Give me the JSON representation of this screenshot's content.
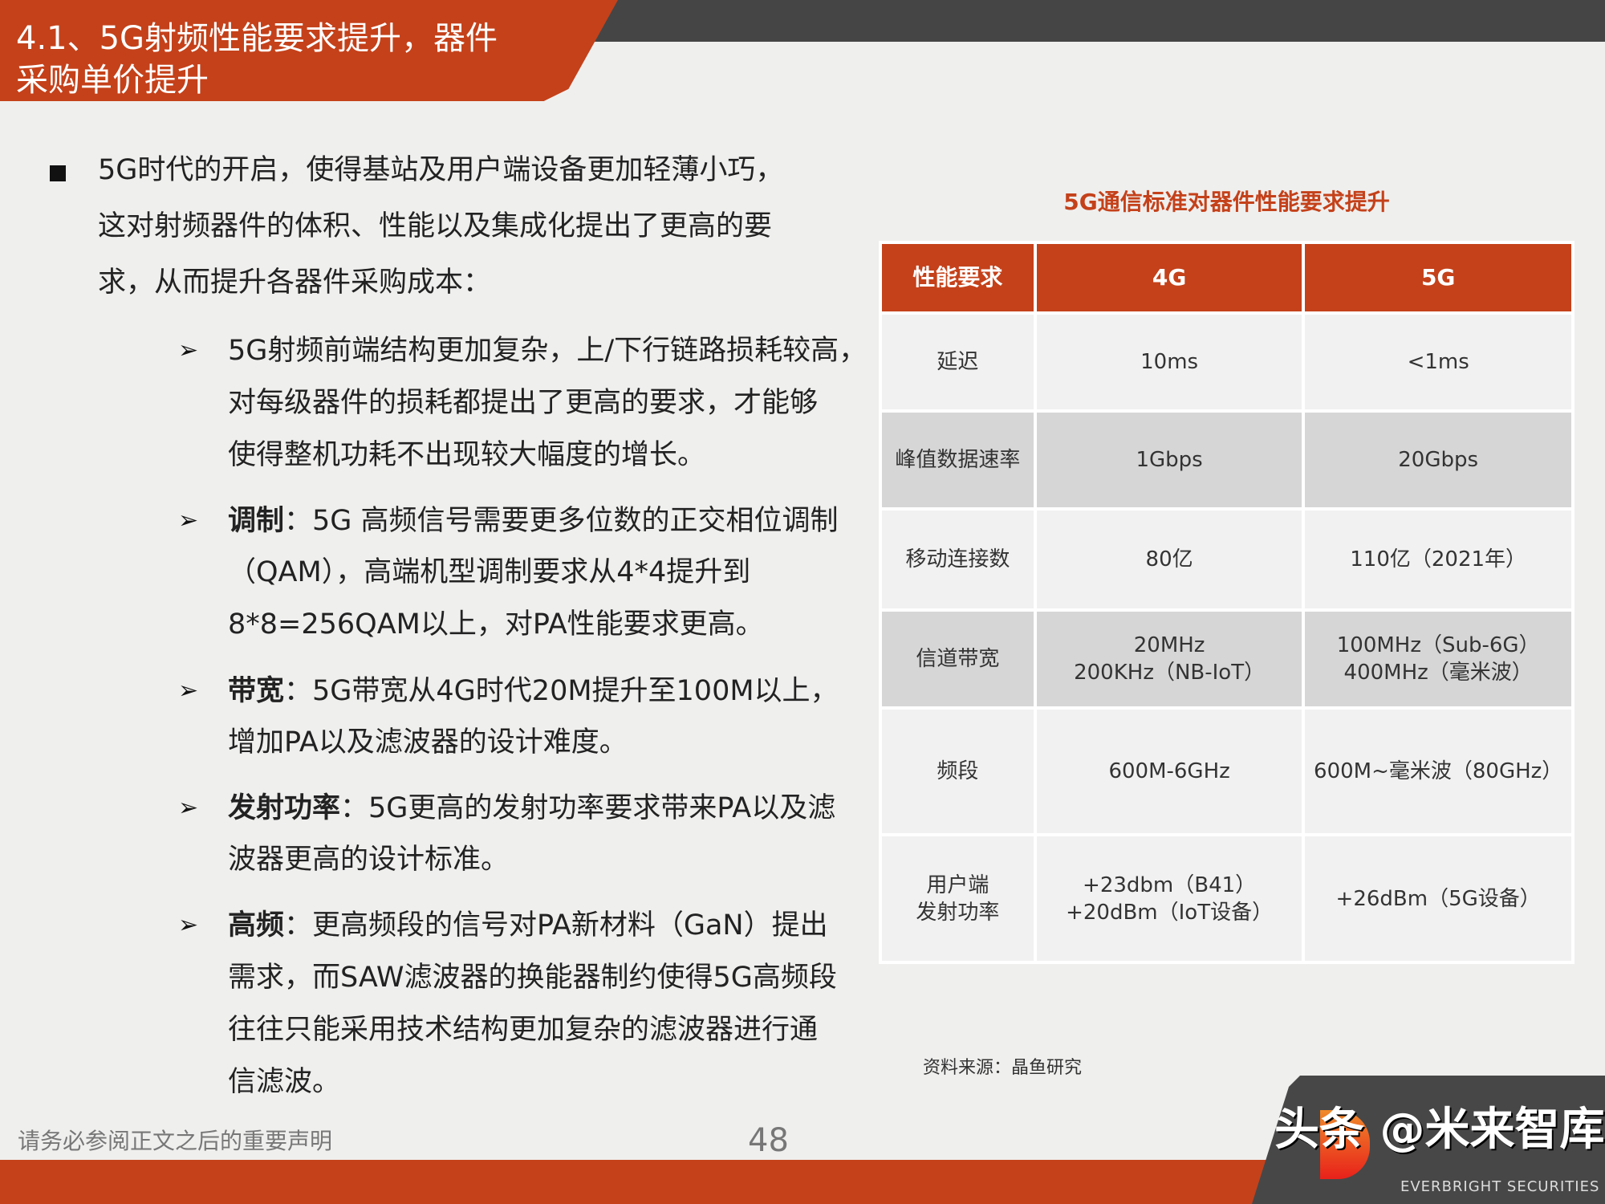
{
  "header": {
    "title_line1": "4.1、5G射频性能要求提升，器件",
    "title_line2": "采购单价提升"
  },
  "body": {
    "main_bullet": [
      "5G时代的开启，使得基站及用户端设备更加轻薄小巧，",
      "这对射频器件的体积、性能以及集成化提出了更高的要",
      "求，从而提升各器件采购成本："
    ],
    "sub_bullets": [
      {
        "label": "",
        "lines": [
          "5G射频前端结构更加复杂，上/下行链路损耗较高，",
          "对每级器件的损耗都提出了更高的要求，才能够",
          "使得整机功耗不出现较大幅度的增长。"
        ]
      },
      {
        "label": "调制",
        "lines": [
          "：5G 高频信号需要更多位数的正交相位调制",
          "（QAM），高端机型调制要求从4*4提升到",
          "8*8=256QAM以上，对PA性能要求更高。"
        ]
      },
      {
        "label": "带宽",
        "lines": [
          "：5G带宽从4G时代20M提升至100M以上，",
          "增加PA以及滤波器的设计难度。"
        ]
      },
      {
        "label": "发射功率",
        "lines": [
          "：5G更高的发射功率要求带来PA以及滤",
          "波器更高的设计标准。"
        ]
      },
      {
        "label": "高频",
        "lines": [
          "：更高频段的信号对PA新材料（GaN）提出",
          "需求，而SAW滤波器的换能器制约使得5G高频段",
          "往往只能采用技术结构更加复杂的滤波器进行通",
          "信滤波。"
        ]
      }
    ],
    "arrow_icon": "➢"
  },
  "table": {
    "title": "5G通信标准对器件性能要求提升",
    "headers": [
      "性能要求",
      "4G",
      "5G"
    ],
    "rows": [
      [
        "延迟",
        "10ms",
        "<1ms"
      ],
      [
        "峰值数据速率",
        "1Gbps",
        "20Gbps"
      ],
      [
        "移动连接数",
        "80亿",
        "110亿（2021年）"
      ],
      [
        "信道带宽",
        "20MHz\n200KHz（NB-IoT）",
        "100MHz（Sub-6G）\n400MHz（毫米波）"
      ],
      [
        "频段",
        "600M-6GHz",
        "600M~毫米波（80GHz）"
      ],
      [
        "用户端\n发射功率",
        "+23dbm（B41）\n+20dBm（IoT设备）",
        "+26dBm（5G设备）"
      ]
    ],
    "source": "资料来源：晶鱼研究"
  },
  "footer": {
    "disclaimer": "请务必参阅正文之后的重要声明",
    "page": "48",
    "watermark": "头条 @米来智库",
    "logo_text": "EVERBRIGHT SECURITIES"
  },
  "colors": {
    "accent": "#c4411a",
    "dark": "#454545",
    "background": "#efefee"
  }
}
